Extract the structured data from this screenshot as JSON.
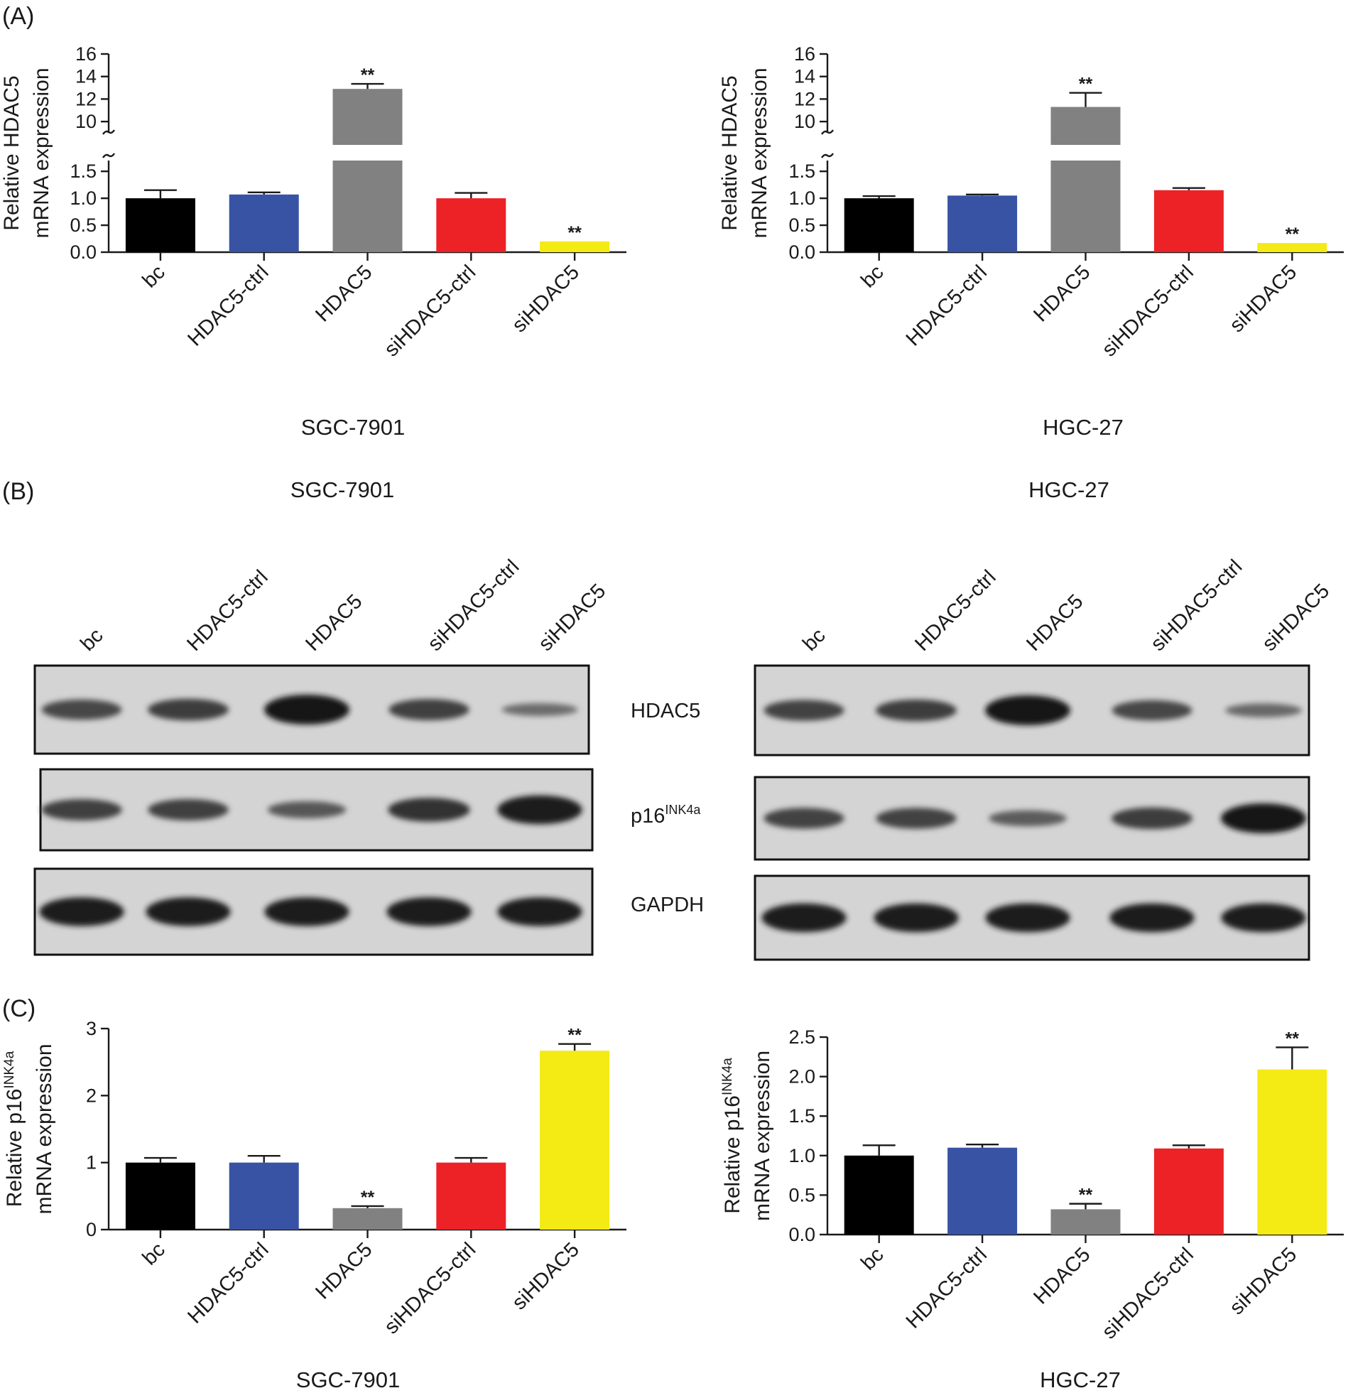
{
  "panels": {
    "A": "(A)",
    "B": "(B)",
    "C": "(C)"
  },
  "categories": [
    "bc",
    "HDAC5-ctrl",
    "HDAC5",
    "siHDAC5-ctrl",
    "siHDAC5"
  ],
  "bar_colors": [
    "#000000",
    "#3853a4",
    "#818181",
    "#ec2227",
    "#f4ea14"
  ],
  "significance_marker": "**",
  "cell_lines": [
    "SGC-7901",
    "HGC-27"
  ],
  "western": {
    "cell_lines": [
      "SGC-7901",
      "HGC-27"
    ],
    "lane_labels": [
      "bc",
      "HDAC5-ctrl",
      "HDAC5",
      "siHDAC5-ctrl",
      "siHDAC5"
    ],
    "proteins": [
      "HDAC5",
      "p16",
      "GAPDH"
    ],
    "protein_superscripts": [
      "",
      "INK4a",
      ""
    ],
    "band_intensity": {
      "SGC-7901": {
        "HDAC5": [
          0.55,
          0.62,
          1.0,
          0.6,
          0.2
        ],
        "p16": [
          0.6,
          0.6,
          0.4,
          0.72,
          0.95
        ],
        "GAPDH": [
          0.95,
          0.95,
          0.95,
          0.95,
          0.95
        ]
      },
      "HGC-27": {
        "HDAC5": [
          0.58,
          0.62,
          1.0,
          0.55,
          0.25
        ],
        "p16": [
          0.58,
          0.58,
          0.35,
          0.62,
          1.0
        ],
        "GAPDH": [
          0.95,
          0.95,
          0.95,
          0.95,
          0.95
        ]
      }
    }
  },
  "chart_data": [
    {
      "type": "bar",
      "panel": "A",
      "xlabel": "SGC-7901",
      "ylabel": "Relative HDAC5",
      "ylabel_line2": "mRNA expression",
      "categories": [
        "bc",
        "HDAC5-ctrl",
        "HDAC5",
        "siHDAC5-ctrl",
        "siHDAC5"
      ],
      "values": [
        1.0,
        1.07,
        12.9,
        1.0,
        0.2
      ],
      "errors": [
        0.15,
        0.04,
        0.45,
        0.1,
        0.0
      ],
      "significant": [
        false,
        false,
        true,
        false,
        true
      ],
      "axis_break": true,
      "lower_ticks": [
        "0.0",
        "0.5",
        "1.0",
        "1.5"
      ],
      "upper_ticks": [
        "10",
        "12",
        "14",
        "16"
      ],
      "ylim_lower": [
        0,
        1.7
      ],
      "ylim_upper": [
        9,
        16
      ]
    },
    {
      "type": "bar",
      "panel": "A",
      "xlabel": "HGC-27",
      "ylabel": "Relative HDAC5",
      "ylabel_line2": "mRNA expression",
      "categories": [
        "bc",
        "HDAC5-ctrl",
        "HDAC5",
        "siHDAC5-ctrl",
        "siHDAC5"
      ],
      "values": [
        1.0,
        1.05,
        11.3,
        1.15,
        0.17
      ],
      "errors": [
        0.04,
        0.02,
        1.25,
        0.04,
        0.0
      ],
      "significant": [
        false,
        false,
        true,
        false,
        true
      ],
      "axis_break": true,
      "lower_ticks": [
        "0.0",
        "0.5",
        "1.0",
        "1.5"
      ],
      "upper_ticks": [
        "10",
        "12",
        "14",
        "16"
      ],
      "ylim_lower": [
        0,
        1.7
      ],
      "ylim_upper": [
        9,
        16
      ]
    },
    {
      "type": "bar",
      "panel": "C",
      "xlabel": "SGC-7901",
      "ylabel": "Relative p16",
      "ylabel_sup": "INK4a",
      "ylabel_line2": "mRNA expression",
      "categories": [
        "bc",
        "HDAC5-ctrl",
        "HDAC5",
        "siHDAC5-ctrl",
        "siHDAC5"
      ],
      "values": [
        1.0,
        1.0,
        0.32,
        1.0,
        2.67
      ],
      "errors": [
        0.07,
        0.1,
        0.03,
        0.07,
        0.1
      ],
      "significant": [
        false,
        false,
        true,
        false,
        true
      ],
      "axis_break": false,
      "ticks": [
        "0",
        "1",
        "2",
        "3"
      ],
      "ylim": [
        0,
        3
      ]
    },
    {
      "type": "bar",
      "panel": "C",
      "xlabel": "HGC-27",
      "ylabel": "Relative p16",
      "ylabel_sup": "INK4a",
      "ylabel_line2": "mRNA expression",
      "categories": [
        "bc",
        "HDAC5-ctrl",
        "HDAC5",
        "siHDAC5-ctrl",
        "siHDAC5"
      ],
      "values": [
        1.0,
        1.1,
        0.32,
        1.09,
        2.09
      ],
      "errors": [
        0.13,
        0.04,
        0.07,
        0.04,
        0.28
      ],
      "significant": [
        false,
        false,
        true,
        false,
        true
      ],
      "axis_break": false,
      "ticks": [
        "0.0",
        "0.5",
        "1.0",
        "1.5",
        "2.0",
        "2.5"
      ],
      "ylim": [
        0,
        2.5
      ]
    }
  ]
}
